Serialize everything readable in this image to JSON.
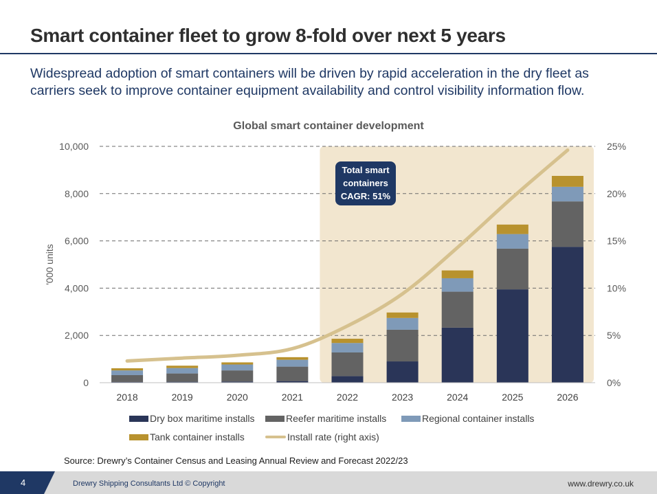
{
  "header": {
    "title": "Smart container fleet to grow 8-fold over next 5 years",
    "subtitle": "Widespread adoption of smart containers will be driven by rapid acceleration in the dry fleet as carriers seek to improve container equipment availability and control visibility information flow."
  },
  "chart_data": {
    "type": "bar",
    "stacked": true,
    "title": "Global smart container development",
    "ylabel": "'000 units",
    "ylabel_right": "",
    "categories": [
      "2018",
      "2019",
      "2020",
      "2021",
      "2022",
      "2023",
      "2024",
      "2025",
      "2026"
    ],
    "ylim": [
      0,
      10000
    ],
    "yticks": [
      "0",
      "2,000",
      "4,000",
      "6,000",
      "8,000",
      "10,000"
    ],
    "y2lim": [
      0,
      25
    ],
    "y2ticks": [
      "0%",
      "5%",
      "10%",
      "15%",
      "20%",
      "25%"
    ],
    "grid": "dashed horizontal",
    "series": [
      {
        "name": "Dry box maritime installs",
        "color": "#2a3558",
        "values": [
          30,
          40,
          50,
          70,
          280,
          900,
          2330,
          3950,
          5750
        ]
      },
      {
        "name": "Reefer maritime installs",
        "color": "#636363",
        "values": [
          290,
          350,
          470,
          610,
          1000,
          1340,
          1520,
          1720,
          1920
        ]
      },
      {
        "name": "Regional container installs",
        "color": "#7f9ab8",
        "values": [
          200,
          230,
          250,
          290,
          400,
          500,
          570,
          620,
          620
        ]
      },
      {
        "name": "Tank container installs",
        "color": "#b8922e",
        "values": [
          90,
          100,
          90,
          110,
          180,
          230,
          330,
          400,
          460
        ]
      }
    ],
    "line_series": {
      "name": "Install rate (right axis)",
      "color": "#d6c18e",
      "axis": "right",
      "values": [
        2.3,
        2.6,
        2.9,
        3.6,
        6.0,
        9.4,
        14.3,
        19.6,
        24.6
      ]
    },
    "highlight": {
      "from": "2022",
      "to": "2026",
      "color": "#f2e6cf"
    },
    "annotation": {
      "lines": [
        "Total smart",
        "containers",
        "CAGR: 51%"
      ],
      "background": "#1f3864"
    },
    "legend_position": "bottom"
  },
  "source": "Source: Drewry’s Container Census and Leasing Annual Review and Forecast 2022/23",
  "footer": {
    "page_number": "4",
    "company": "Drewry Shipping Consultants Ltd  © Copyright",
    "website": "www.drewry.co.uk"
  },
  "colors": {
    "title_rule": "#1f3864",
    "accent": "#1f3864",
    "footer_bg": "#d9d9d9"
  }
}
